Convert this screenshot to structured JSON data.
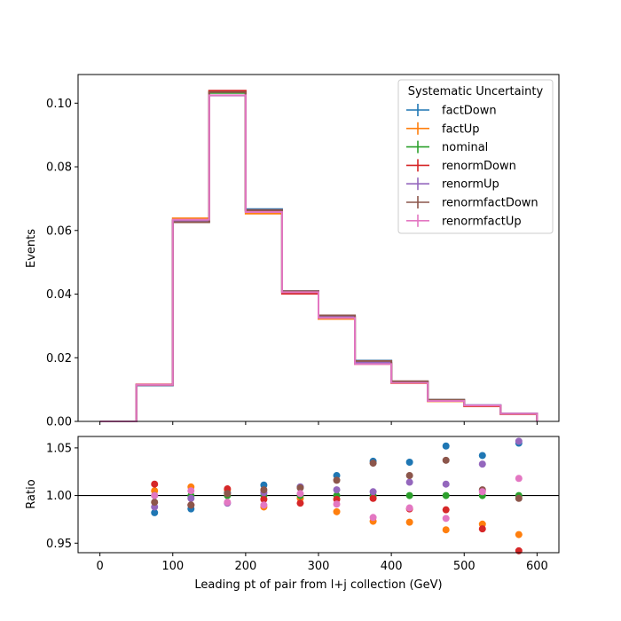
{
  "chart_data": [
    {
      "type": "step",
      "panel": "main",
      "ylabel": "Events",
      "xlim": [
        -30,
        630
      ],
      "ylim": [
        0,
        0.109
      ],
      "yticks": [
        "0.00",
        "0.02",
        "0.04",
        "0.06",
        "0.08",
        "0.10"
      ],
      "bin_edges": [
        0,
        50,
        100,
        150,
        200,
        250,
        300,
        350,
        400,
        450,
        500,
        550,
        600
      ],
      "legend": {
        "title": "Systematic Uncertainty",
        "placement": "top-right"
      },
      "series": [
        {
          "name": "factDown",
          "color": "#1f77b4",
          "values": [
            0.0,
            0.0113,
            0.0627,
            0.1035,
            0.0667,
            0.0409,
            0.0332,
            0.0191,
            0.0125,
            0.0068,
            0.0051,
            0.0025
          ]
        },
        {
          "name": "factUp",
          "color": "#ff7f0e",
          "values": [
            0.0,
            0.0115,
            0.0638,
            0.1038,
            0.0653,
            0.0404,
            0.0322,
            0.018,
            0.012,
            0.0063,
            0.0048,
            0.0023
          ]
        },
        {
          "name": "nominal",
          "color": "#2ca02c",
          "values": [
            0.0,
            0.0115,
            0.0632,
            0.1032,
            0.066,
            0.0405,
            0.0328,
            0.0184,
            0.0123,
            0.0066,
            0.005,
            0.0024
          ]
        },
        {
          "name": "renormDown",
          "color": "#d62728",
          "values": [
            0.0,
            0.0116,
            0.063,
            0.1039,
            0.0663,
            0.0401,
            0.0329,
            0.0183,
            0.0123,
            0.0065,
            0.0048,
            0.0023
          ]
        },
        {
          "name": "renormUp",
          "color": "#9467bd",
          "values": [
            0.0,
            0.0114,
            0.063,
            0.1024,
            0.0664,
            0.0409,
            0.033,
            0.0185,
            0.0125,
            0.0067,
            0.0051,
            0.0025
          ]
        },
        {
          "name": "renormfactDown",
          "color": "#8c564b",
          "values": [
            0.0,
            0.0114,
            0.0626,
            0.1035,
            0.0664,
            0.0409,
            0.0333,
            0.019,
            0.0126,
            0.0068,
            0.005,
            0.0024
          ]
        },
        {
          "name": "renormfactUp",
          "color": "#e377c2",
          "values": [
            0.0,
            0.0115,
            0.0634,
            0.1025,
            0.0658,
            0.0406,
            0.0325,
            0.018,
            0.0121,
            0.0064,
            0.005,
            0.0024
          ]
        }
      ]
    },
    {
      "type": "scatter",
      "panel": "ratio",
      "xlabel": "Leading pt of pair from l+j collection (GeV)",
      "ylabel": "Ratio",
      "xlim": [
        -30,
        630
      ],
      "ylim": [
        0.94,
        1.062
      ],
      "yticks": [
        "0.95",
        "1.00",
        "1.05"
      ],
      "xticks": [
        "0",
        "100",
        "200",
        "300",
        "400",
        "500",
        "600"
      ],
      "reference_line": 1.0,
      "x": [
        75,
        125,
        175,
        225,
        275,
        325,
        375,
        425,
        475,
        525,
        575
      ],
      "series": [
        {
          "name": "factDown",
          "color": "#1f77b4",
          "values": [
            0.982,
            0.986,
            1.003,
            1.011,
            1.009,
            1.021,
            1.036,
            1.035,
            1.052,
            1.042,
            1.055
          ]
        },
        {
          "name": "factUp",
          "color": "#ff7f0e",
          "values": [
            1.005,
            1.009,
            1.006,
            0.988,
            0.997,
            0.983,
            0.973,
            0.972,
            0.964,
            0.97,
            0.959
          ]
        },
        {
          "name": "nominal",
          "color": "#2ca02c",
          "values": [
            1.0,
            1.0,
            1.0,
            1.0,
            1.0,
            1.0,
            1.0,
            1.0,
            1.0,
            1.0,
            1.0
          ]
        },
        {
          "name": "renormDown",
          "color": "#d62728",
          "values": [
            1.012,
            0.99,
            1.007,
            0.996,
            0.992,
            0.996,
            0.997,
            0.986,
            0.985,
            0.965,
            0.942
          ]
        },
        {
          "name": "renormUp",
          "color": "#9467bd",
          "values": [
            0.988,
            0.997,
            0.992,
            1.003,
            1.009,
            1.006,
            1.004,
            1.014,
            1.012,
            1.033,
            1.057
          ]
        },
        {
          "name": "renormfactDown",
          "color": "#8c564b",
          "values": [
            0.993,
            0.99,
            1.002,
            1.006,
            1.008,
            1.016,
            1.034,
            1.021,
            1.037,
            1.006,
            0.997
          ]
        },
        {
          "name": "renormfactUp",
          "color": "#e377c2",
          "values": [
            1.0,
            1.005,
            0.993,
            0.99,
            1.002,
            0.991,
            0.977,
            0.987,
            0.976,
            1.004,
            1.018
          ]
        }
      ]
    }
  ]
}
